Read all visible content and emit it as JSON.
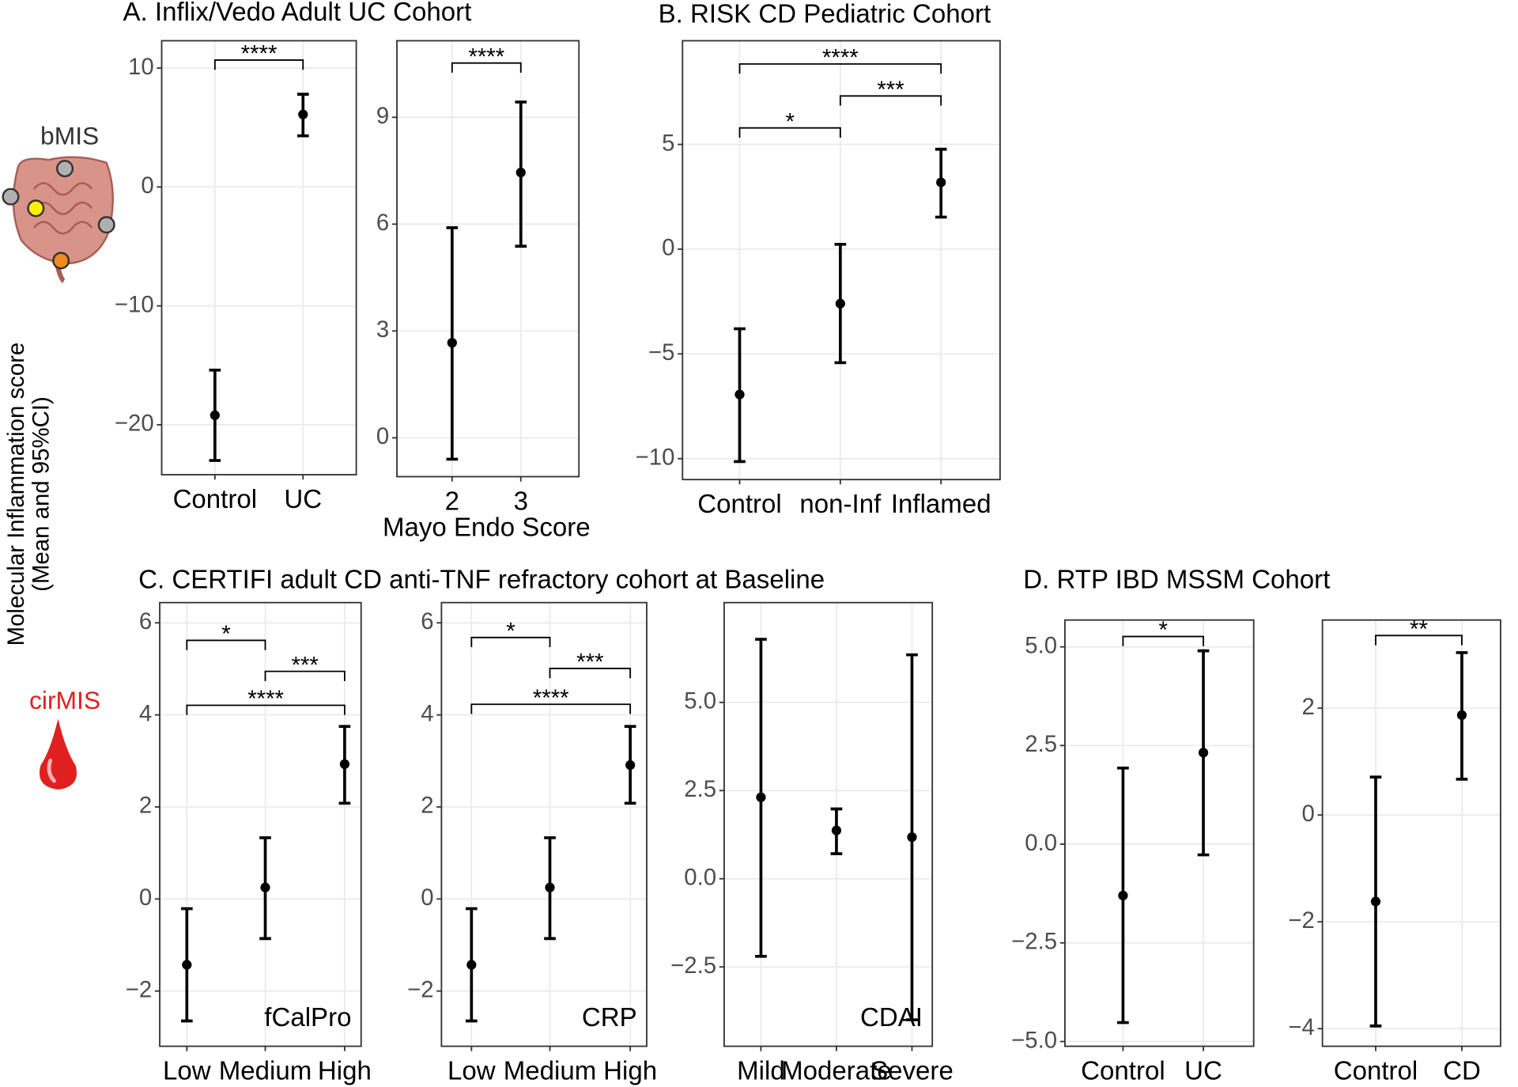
{
  "y_axis_label": [
    "Molecular Inflammation score",
    "(Mean and 95%CI)"
  ],
  "icon_labels": {
    "tissue": "bMIS",
    "blood": "cirMIS"
  },
  "panel_titles": [
    "A. Inflix/Vedo Adult UC Cohort",
    "B. RISK CD Pediatric Cohort",
    "C. CERTIFI adult CD anti-TNF refractory cohort at Baseline",
    "D. RTP IBD MSSM Cohort"
  ],
  "chart_data": [
    {
      "type": "errorbar",
      "categories": [
        "Control",
        "UC"
      ],
      "values": [
        -19.2,
        6.1
      ],
      "lower": [
        -23.0,
        4.3
      ],
      "upper": [
        -15.4,
        7.8
      ],
      "ylim": [
        -24.2,
        12.3
      ],
      "yticks": [
        {
          "value": -20,
          "label": "−20"
        },
        {
          "value": -10,
          "label": "−10"
        },
        0,
        10
      ],
      "grid": true,
      "color": "#000000",
      "brackets": [
        {
          "between": [
            "Control",
            "UC"
          ],
          "label": "****"
        }
      ]
    },
    {
      "type": "errorbar",
      "categories": [
        "2",
        "3"
      ],
      "x_label": "Mayo Endo Score",
      "values": [
        2.67,
        7.45
      ],
      "lower": [
        -0.6,
        5.38
      ],
      "upper": [
        5.9,
        9.43
      ],
      "ylim": [
        -1.09,
        11.15
      ],
      "yticks": [
        0,
        3,
        6,
        9
      ],
      "grid": true,
      "color": "#000000",
      "brackets": [
        {
          "between": [
            "2",
            "3"
          ],
          "label": "****"
        }
      ]
    },
    {
      "type": "errorbar",
      "categories": [
        "Control",
        "non-Inf",
        "Inflamed"
      ],
      "values": [
        -6.94,
        -2.6,
        3.19
      ],
      "lower": [
        -10.14,
        -5.42,
        1.53
      ],
      "upper": [
        -3.8,
        0.23,
        4.77
      ],
      "ylim": [
        -11.0,
        9.95
      ],
      "yticks": [
        {
          "value": -10,
          "label": "−10"
        },
        {
          "value": -5,
          "label": "−5"
        },
        0,
        5
      ],
      "grid": true,
      "color": "#000000",
      "brackets": [
        {
          "between": [
            "Control",
            "non-Inf"
          ],
          "label": "*"
        },
        {
          "between": [
            "non-Inf",
            "Inflamed"
          ],
          "label": "***"
        },
        {
          "between": [
            "Control",
            "Inflamed"
          ],
          "label": "****"
        }
      ]
    },
    {
      "type": "errorbar",
      "categories": [
        "Low",
        "Medium",
        "High"
      ],
      "inset_label": "fCalPro",
      "values": [
        -1.43,
        0.25,
        2.93
      ],
      "lower": [
        -2.65,
        -0.86,
        2.08
      ],
      "upper": [
        -0.21,
        1.33,
        3.75
      ],
      "ylim": [
        -3.2,
        6.44
      ],
      "yticks": [
        {
          "value": -2,
          "label": "−2"
        },
        0,
        2,
        4,
        6
      ],
      "grid": true,
      "color": "#000000",
      "brackets": [
        {
          "between": [
            "Low",
            "Medium"
          ],
          "label": "*"
        },
        {
          "between": [
            "Medium",
            "High"
          ],
          "label": "***"
        },
        {
          "between": [
            "Low",
            "High"
          ],
          "label": "****"
        }
      ]
    },
    {
      "type": "errorbar",
      "categories": [
        "Low",
        "Medium",
        "High"
      ],
      "inset_label": "CRP",
      "values": [
        -1.43,
        0.25,
        2.91
      ],
      "lower": [
        -2.65,
        -0.86,
        2.08
      ],
      "upper": [
        -0.21,
        1.33,
        3.75
      ],
      "ylim": [
        -3.2,
        6.44
      ],
      "yticks": [
        {
          "value": -2,
          "label": "−2"
        },
        0,
        2,
        4,
        6
      ],
      "grid": true,
      "color": "#000000",
      "brackets": [
        {
          "between": [
            "Low",
            "Medium"
          ],
          "label": "*"
        },
        {
          "between": [
            "Medium",
            "High"
          ],
          "label": "***"
        },
        {
          "between": [
            "Low",
            "High"
          ],
          "label": "****"
        }
      ]
    },
    {
      "type": "errorbar",
      "categories": [
        "Mild",
        "Moderate",
        "Severe"
      ],
      "inset_label": "CDAI",
      "values": [
        2.31,
        1.37,
        1.18
      ],
      "lower": [
        -2.2,
        0.71,
        -4.0
      ],
      "upper": [
        6.79,
        1.98,
        6.35
      ],
      "ylim": [
        -4.75,
        7.83
      ],
      "yticks": [
        {
          "value": -2.5,
          "label": "−2.5"
        },
        {
          "value": 0,
          "label": "0.0"
        },
        2.5,
        {
          "value": 5,
          "label": "5.0"
        }
      ],
      "grid": true,
      "color": "#000000",
      "brackets": []
    },
    {
      "type": "errorbar",
      "categories": [
        "Control",
        "UC"
      ],
      "values": [
        -1.3,
        2.32
      ],
      "lower": [
        -4.52,
        -0.27
      ],
      "upper": [
        1.93,
        4.9
      ],
      "ylim": [
        -5.12,
        5.68
      ],
      "yticks": [
        {
          "value": -5,
          "label": "−5.0"
        },
        {
          "value": -2.5,
          "label": "−2.5"
        },
        {
          "value": 0,
          "label": "0.0"
        },
        2.5,
        {
          "value": 5,
          "label": "5.0"
        }
      ],
      "grid": true,
      "color": "#000000",
      "brackets": [
        {
          "between": [
            "Control",
            "UC"
          ],
          "label": "*"
        }
      ]
    },
    {
      "type": "errorbar",
      "categories": [
        "Control",
        "CD"
      ],
      "values": [
        -1.62,
        1.87
      ],
      "lower": [
        -3.95,
        0.67
      ],
      "upper": [
        0.71,
        3.04
      ],
      "ylim": [
        -4.33,
        3.65
      ],
      "yticks": [
        {
          "value": -4,
          "label": "−4"
        },
        {
          "value": -2,
          "label": "−2"
        },
        0,
        2
      ],
      "grid": true,
      "color": "#000000",
      "brackets": [
        {
          "between": [
            "Control",
            "CD"
          ],
          "label": "**"
        }
      ]
    }
  ]
}
